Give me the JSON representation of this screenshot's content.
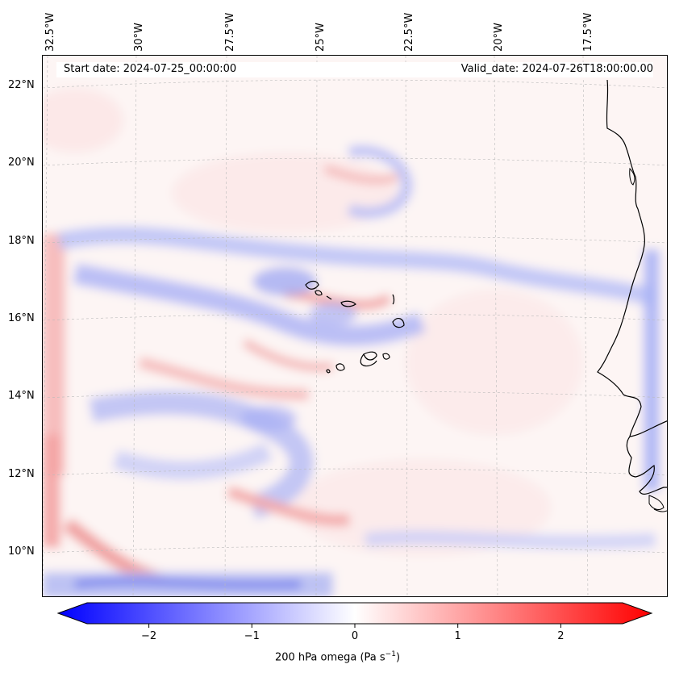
{
  "header": {
    "start_date": "Start date: 2024-07-25_00:00:00",
    "valid_date": "Valid_date: 2024-07-26T18:00:00.00"
  },
  "axes": {
    "longitude_labels": [
      "32.5°W",
      "30°W",
      "27.5°W",
      "25°W",
      "22.5°W",
      "20°W",
      "17.5°W"
    ],
    "latitude_labels": [
      "22°N",
      "20°N",
      "18°N",
      "16°N",
      "14°N",
      "12°N",
      "10°N"
    ]
  },
  "colorbar": {
    "ticks": [
      "−2",
      "−1",
      "0",
      "1",
      "2"
    ],
    "tick_values": [
      -2,
      -1,
      0,
      1,
      2
    ],
    "range": [
      -2.6,
      2.6
    ],
    "label_main": "200 hPa omega (Pa s",
    "label_sup": "−1",
    "label_end": ")",
    "color_min": "#0000ff",
    "color_mid": "#ffffff",
    "color_max": "#ff0000"
  },
  "map_colors": {
    "land_outline": "#000000",
    "grid": "#bbbbbb",
    "ocean_base": "#fdf7f6"
  }
}
